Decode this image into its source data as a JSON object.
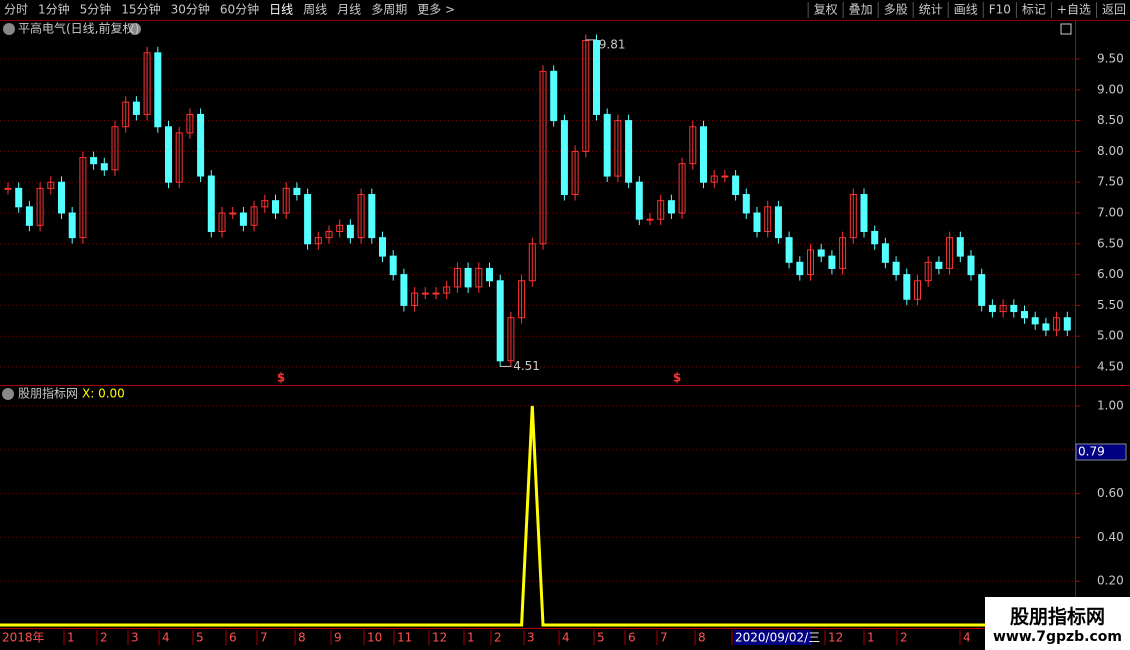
{
  "toolbar": {
    "left": [
      "分时",
      "1分钟",
      "5分钟",
      "15分钟",
      "30分钟",
      "60分钟",
      "日线",
      "周线",
      "月线",
      "多周期",
      "更多 >"
    ],
    "active": 6,
    "right": [
      "复权",
      "叠加",
      "多股",
      "统计",
      "画线",
      "F10",
      "标记",
      "+自选",
      "返回"
    ]
  },
  "chart_data": [
    {
      "type": "candlestick",
      "title": "平高电气(日线,前复权)",
      "values": [
        7.4,
        7.1,
        6.8,
        7.4,
        7.5,
        7.0,
        6.6,
        7.9,
        7.8,
        7.7,
        8.4,
        8.8,
        8.6,
        9.6,
        8.4,
        7.5,
        8.3,
        8.6,
        7.6,
        6.7,
        7.0,
        7.0,
        6.8,
        7.1,
        7.2,
        7.0,
        7.4,
        7.3,
        6.5,
        6.6,
        6.7,
        6.8,
        6.6,
        7.3,
        6.6,
        6.3,
        6.0,
        5.5,
        5.7,
        5.7,
        5.7,
        5.8,
        6.1,
        5.8,
        6.1,
        5.9,
        4.6,
        5.3,
        5.9,
        6.5,
        9.3,
        8.5,
        7.3,
        8.0,
        9.8,
        8.6,
        7.6,
        8.5,
        7.5,
        6.9,
        6.9,
        7.2,
        7.0,
        7.8,
        8.4,
        7.5,
        7.6,
        7.6,
        7.3,
        7.0,
        6.7,
        7.1,
        6.6,
        6.2,
        6.0,
        6.4,
        6.3,
        6.1,
        6.6,
        7.3,
        6.7,
        6.5,
        6.2,
        6.0,
        5.6,
        5.9,
        6.2,
        6.1,
        6.6,
        6.3,
        6.0,
        5.5,
        5.4,
        5.5,
        5.4,
        5.3,
        5.2,
        5.1,
        5.3,
        5.1
      ],
      "up_color": "#ff3232",
      "down_color": "#54ffff",
      "max_label": {
        "value": 9.81,
        "label": "9.81"
      },
      "min_label": {
        "value": 4.51,
        "label": "4.51"
      },
      "markers": [
        "$",
        "$"
      ],
      "ylim": [
        4.2,
        10.14
      ],
      "yticks": [
        {
          "value": 4.5,
          "label": "4.50"
        },
        {
          "value": 5,
          "label": "5.00"
        },
        {
          "value": 5.5,
          "label": "5.50"
        },
        {
          "value": 6,
          "label": "6.00"
        },
        {
          "value": 6.5,
          "label": "6.50"
        },
        {
          "value": 7,
          "label": "7.00"
        },
        {
          "value": 7.5,
          "label": "7.50"
        },
        {
          "value": 8,
          "label": "8.00"
        },
        {
          "value": 8.5,
          "label": "8.50"
        },
        {
          "value": 9,
          "label": "9.00"
        },
        {
          "value": 9.5,
          "label": "9.50"
        }
      ]
    },
    {
      "type": "indicator",
      "title": "股朋指标网",
      "legend": "X: 0.00",
      "color": "#ffff00",
      "values": [
        0,
        0,
        0,
        0,
        0,
        0,
        0,
        0,
        0,
        0,
        0,
        0,
        0,
        0,
        0,
        0,
        0,
        0,
        0,
        0,
        0,
        0,
        0,
        0,
        0,
        0,
        0,
        0,
        0,
        0,
        0,
        0,
        0,
        0,
        0,
        0,
        0,
        0,
        0,
        0,
        0,
        0,
        0,
        0,
        0,
        0,
        0,
        0,
        0,
        1,
        0,
        0,
        0,
        0,
        0,
        0,
        0,
        0,
        0,
        0,
        0,
        0,
        0,
        0,
        0,
        0,
        0,
        0,
        0,
        0,
        0,
        0,
        0,
        0,
        0,
        0,
        0,
        0,
        0,
        0,
        0,
        0,
        0,
        0,
        0,
        0,
        0,
        0,
        0,
        0,
        0,
        0,
        0,
        0,
        0,
        0,
        0,
        0,
        0,
        0
      ],
      "cursor": {
        "value": 0.79,
        "label": "0.79"
      },
      "ylim": [
        0,
        1.047
      ],
      "yticks": [
        {
          "value": 0.2,
          "label": "0.20"
        },
        {
          "value": 0.4,
          "label": "0.40"
        },
        {
          "value": 0.6,
          "label": "0.60"
        },
        {
          "value": 0.8,
          "label": "0.80"
        },
        {
          "value": 1,
          "label": "1.00"
        }
      ]
    }
  ],
  "x_axis": [
    "2018年",
    "1",
    "2",
    "3",
    "4",
    "5",
    "6",
    "7",
    "8",
    "9",
    "10",
    "11",
    "12",
    "1",
    "2",
    "3",
    "4",
    "5",
    "6",
    "7",
    "8",
    "2020/09/02/三",
    "12",
    "1",
    "2",
    "4"
  ],
  "watermark": {
    "title": "股朋指标网",
    "url": "www.7gpzb.com"
  }
}
